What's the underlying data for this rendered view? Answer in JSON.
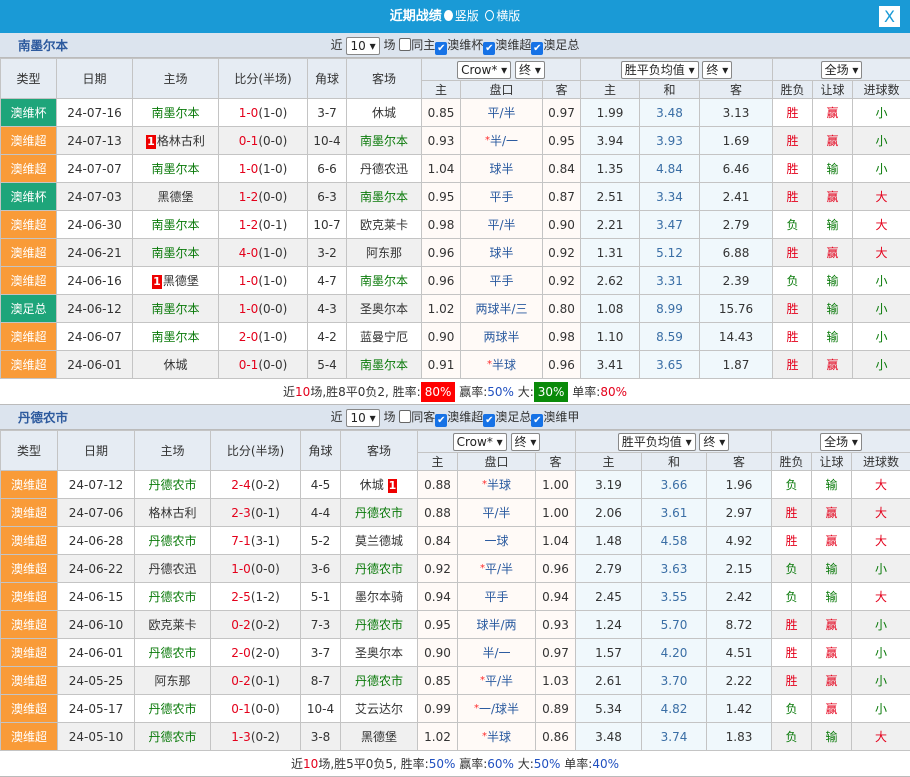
{
  "title": {
    "text": "近期战绩",
    "opt1": "竖版",
    "opt2": "横版",
    "close": "X"
  },
  "headers": {
    "type": "类型",
    "date": "日期",
    "home": "主场",
    "score": "比分(半场)",
    "corner": "角球",
    "away": "客场",
    "company": "Crow*",
    "stage": "终",
    "euro": "胜平负均值",
    "stage2": "终",
    "range": "全场",
    "h": "主",
    "pk": "盘口",
    "a": "客",
    "eh": "主",
    "ed": "和",
    "ea": "客",
    "wl": "胜负",
    "hcr": "让球",
    "ou": "进球数"
  },
  "sections": [
    {
      "team": "南墨尔本",
      "filter": {
        "near": "近",
        "count": "10",
        "unit": "场",
        "same": "同主",
        "checks": [
          "澳维杯",
          "澳维超",
          "澳足总"
        ]
      },
      "rows": [
        [
          "澳维杯",
          "cup",
          "24-07-16",
          "南墨尔本",
          "",
          "1-0",
          "(1-0)",
          "3-7",
          "休城",
          "",
          "0.85",
          "",
          "平/半",
          "0.97",
          "1.99",
          "3.48",
          "3.13",
          "胜",
          "赢",
          "小"
        ],
        [
          "澳维超",
          "lg",
          "24-07-13",
          "格林古利",
          "1",
          "0-1",
          "(0-0)",
          "10-4",
          "南墨尔本",
          "",
          "0.93",
          "*",
          "半/一",
          "0.95",
          "3.94",
          "3.93",
          "1.69",
          "胜",
          "赢",
          "小"
        ],
        [
          "澳维超",
          "lg",
          "24-07-07",
          "南墨尔本",
          "",
          "1-0",
          "(1-0)",
          "6-6",
          "丹德农迅",
          "",
          "1.04",
          "",
          "球半",
          "0.84",
          "1.35",
          "4.84",
          "6.46",
          "胜",
          "输",
          "小"
        ],
        [
          "澳维杯",
          "cup",
          "24-07-03",
          "黑德堡",
          "",
          "1-2",
          "(0-0)",
          "6-3",
          "南墨尔本",
          "",
          "0.95",
          "",
          "平手",
          "0.87",
          "2.51",
          "3.34",
          "2.41",
          "胜",
          "赢",
          "大"
        ],
        [
          "澳维超",
          "lg",
          "24-06-30",
          "南墨尔本",
          "",
          "1-2",
          "(0-1)",
          "10-7",
          "欧克莱卡",
          "",
          "0.98",
          "",
          "平/半",
          "0.90",
          "2.21",
          "3.47",
          "2.79",
          "负",
          "输",
          "大"
        ],
        [
          "澳维超",
          "lg",
          "24-06-21",
          "南墨尔本",
          "",
          "4-0",
          "(1-0)",
          "3-2",
          "阿东那",
          "",
          "0.96",
          "",
          "球半",
          "0.92",
          "1.31",
          "5.12",
          "6.88",
          "胜",
          "赢",
          "大"
        ],
        [
          "澳维超",
          "lg",
          "24-06-16",
          "黑德堡",
          "1",
          "1-0",
          "(1-0)",
          "4-7",
          "南墨尔本",
          "",
          "0.96",
          "",
          "平手",
          "0.92",
          "2.62",
          "3.31",
          "2.39",
          "负",
          "输",
          "小"
        ],
        [
          "澳足总",
          "cup",
          "24-06-12",
          "南墨尔本",
          "",
          "1-0",
          "(0-0)",
          "4-3",
          "圣奥尔本",
          "",
          "1.02",
          "",
          "两球半/三",
          "0.80",
          "1.08",
          "8.99",
          "15.76",
          "胜",
          "输",
          "小"
        ],
        [
          "澳维超",
          "lg",
          "24-06-07",
          "南墨尔本",
          "",
          "2-0",
          "(1-0)",
          "4-2",
          "蓝曼宁厄",
          "",
          "0.90",
          "",
          "两球半",
          "0.98",
          "1.10",
          "8.59",
          "14.43",
          "胜",
          "输",
          "小"
        ],
        [
          "澳维超",
          "lg",
          "24-06-01",
          "休城",
          "",
          "0-1",
          "(0-0)",
          "5-4",
          "南墨尔本",
          "",
          "0.91",
          "*",
          "半球",
          "0.96",
          "3.41",
          "3.65",
          "1.87",
          "胜",
          "赢",
          "小"
        ]
      ],
      "summary": {
        "p1": "近",
        "n": "10",
        "p2": "场,胜8平0负2, 胜率:",
        "win": "80%",
        "p3": " 赢率:",
        "hc": "50%",
        "p4": " 大:",
        "big": "30%",
        "p5": " 单率:",
        "odd": "80%"
      }
    },
    {
      "team": "丹德农市",
      "filter": {
        "near": "近",
        "count": "10",
        "unit": "场",
        "same": "同客",
        "checks": [
          "澳维超",
          "澳足总",
          "澳维甲"
        ]
      },
      "rows": [
        [
          "澳维超",
          "lg",
          "24-07-12",
          "丹德农市",
          "",
          "2-4",
          "(0-2)",
          "4-5",
          "休城",
          "1",
          "0.88",
          "*",
          "半球",
          "1.00",
          "3.19",
          "3.66",
          "1.96",
          "负",
          "输",
          "大"
        ],
        [
          "澳维超",
          "lg",
          "24-07-06",
          "格林古利",
          "",
          "2-3",
          "(0-1)",
          "4-4",
          "丹德农市",
          "",
          "0.88",
          "",
          "平/半",
          "1.00",
          "2.06",
          "3.61",
          "2.97",
          "胜",
          "赢",
          "大"
        ],
        [
          "澳维超",
          "lg",
          "24-06-28",
          "丹德农市",
          "",
          "7-1",
          "(3-1)",
          "5-2",
          "莫兰德城",
          "",
          "0.84",
          "",
          "一球",
          "1.04",
          "1.48",
          "4.58",
          "4.92",
          "胜",
          "赢",
          "大"
        ],
        [
          "澳维超",
          "lg",
          "24-06-22",
          "丹德农迅",
          "",
          "1-0",
          "(0-0)",
          "3-6",
          "丹德农市",
          "",
          "0.92",
          "*",
          "平/半",
          "0.96",
          "2.79",
          "3.63",
          "2.15",
          "负",
          "输",
          "小"
        ],
        [
          "澳维超",
          "lg",
          "24-06-15",
          "丹德农市",
          "",
          "2-5",
          "(1-2)",
          "5-1",
          "墨尔本骑",
          "",
          "0.94",
          "",
          "平手",
          "0.94",
          "2.45",
          "3.55",
          "2.42",
          "负",
          "输",
          "大"
        ],
        [
          "澳维超",
          "lg",
          "24-06-10",
          "欧克莱卡",
          "",
          "0-2",
          "(0-2)",
          "7-3",
          "丹德农市",
          "",
          "0.95",
          "",
          "球半/两",
          "0.93",
          "1.24",
          "5.70",
          "8.72",
          "胜",
          "赢",
          "小"
        ],
        [
          "澳维超",
          "lg",
          "24-06-01",
          "丹德农市",
          "",
          "2-0",
          "(2-0)",
          "3-7",
          "圣奥尔本",
          "",
          "0.90",
          "",
          "半/一",
          "0.97",
          "1.57",
          "4.20",
          "4.51",
          "胜",
          "赢",
          "小"
        ],
        [
          "澳维超",
          "lg",
          "24-05-25",
          "阿东那",
          "",
          "0-2",
          "(0-1)",
          "8-7",
          "丹德农市",
          "",
          "0.85",
          "*",
          "平/半",
          "1.03",
          "2.61",
          "3.70",
          "2.22",
          "胜",
          "赢",
          "小"
        ],
        [
          "澳维超",
          "lg",
          "24-05-17",
          "丹德农市",
          "",
          "0-1",
          "(0-0)",
          "10-4",
          "艾云达尔",
          "",
          "0.99",
          "*",
          "一/球半",
          "0.89",
          "5.34",
          "4.82",
          "1.42",
          "负",
          "赢",
          "小"
        ],
        [
          "澳维超",
          "lg",
          "24-05-10",
          "丹德农市",
          "",
          "1-3",
          "(0-2)",
          "3-8",
          "黑德堡",
          "",
          "1.02",
          "*",
          "半球",
          "0.86",
          "3.48",
          "3.74",
          "1.83",
          "负",
          "输",
          "大"
        ]
      ],
      "summary": {
        "p1": "近",
        "n": "10",
        "p2": "场,胜5平0负5, 胜率:",
        "win": "50%",
        "p3": " 赢率:",
        "hc": "60%",
        "p4": " 大:",
        "big": "50%",
        "p5": " 单率:",
        "odd": "40%"
      }
    }
  ],
  "colors": {
    "titlebar": "#1a9ad6",
    "cup": "#1ea57a",
    "league": "#f99b38",
    "win": "#e4001b",
    "lose": "#0a7a0a"
  }
}
